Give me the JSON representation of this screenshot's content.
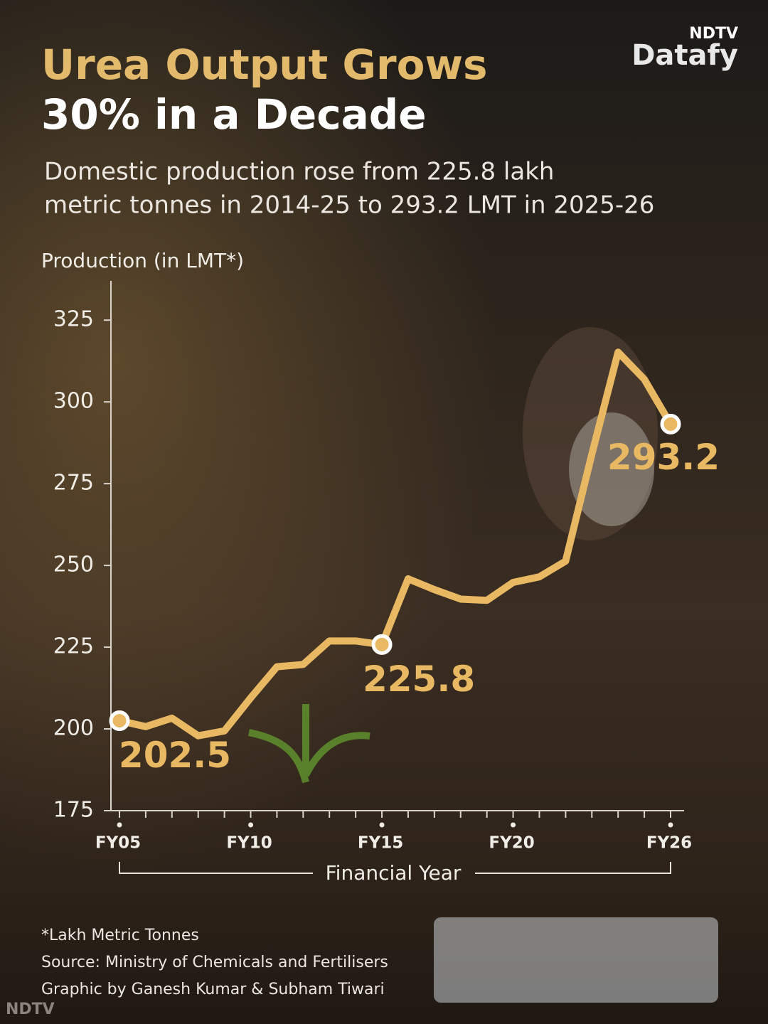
{
  "chart_data": {
    "type": "line",
    "brand": "NDTV",
    "brand_product": "Datafy",
    "title_line1": "Urea Output Grows",
    "title_line2": "30% in a Decade",
    "subtitle_line1": "Domestic production rose from 225.8 lakh",
    "subtitle_line2": "metric tonnes in 2014-25 to 293.2 LMT in 2025-26",
    "y_label": "Production (in LMT*)",
    "x_label": "Financial Year",
    "categories": [
      "FY05",
      null,
      null,
      null,
      null,
      "FY10",
      null,
      null,
      null,
      null,
      "FY15",
      null,
      null,
      null,
      null,
      "FY20",
      null,
      null,
      null,
      null,
      null,
      "FY26"
    ],
    "series": [
      {
        "name": "Production",
        "color": "#e8b862",
        "values": [
          202.5,
          200.7,
          203.3,
          197.9,
          199.4,
          209.5,
          219.0,
          219.7,
          226.9,
          226.9,
          225.8,
          245.9,
          242.6,
          239.7,
          239.3,
          244.8,
          246.5,
          251.3,
          284.0,
          315.2,
          306.9,
          293.2
        ],
        "value_labels": [
          "202.5",
          null,
          null,
          null,
          null,
          null,
          null,
          null,
          null,
          null,
          "225.8",
          null,
          null,
          null,
          null,
          null,
          null,
          null,
          null,
          null,
          null,
          "293.2"
        ]
      }
    ],
    "ylim": [
      175,
      337
    ],
    "yticks": [
      175,
      200,
      225,
      250,
      275,
      300,
      325
    ],
    "footnotes": [
      "*Lakh Metric Tonnes",
      "Source: Ministry of Chemicals and Fertilisers",
      "Graphic by Ganesh Kumar & Subham Tiwari"
    ]
  }
}
